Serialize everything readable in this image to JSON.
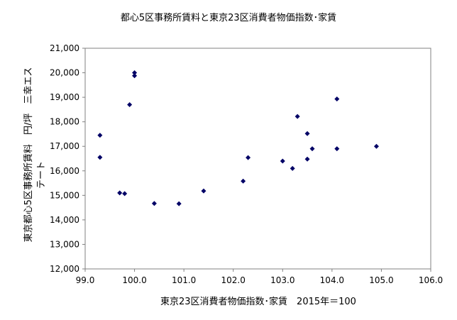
{
  "chart_data": {
    "type": "scatter",
    "title": "都心5区事務所賃料と東京23区消費者物価指数･家賃",
    "xlabel": "東京23区消費者物価指数･家賃　2015年＝100",
    "ylabel_line1": "東京都心5区事務所賃料　円/坪　三幸エステート",
    "ylabel": "東京都心5区事務所賃料　円/坪　三幸エス",
    "ylabel_line2": "テート",
    "xlim": [
      99.0,
      106.0
    ],
    "ylim": [
      12000,
      21000
    ],
    "x_ticks": [
      "99.0",
      "100.0",
      "101.0",
      "102.0",
      "103.0",
      "104.0",
      "105.0",
      "106.0"
    ],
    "y_ticks": [
      "12,000",
      "13,000",
      "14,000",
      "15,000",
      "16,000",
      "17,000",
      "18,000",
      "19,000",
      "20,000",
      "21,000"
    ],
    "grid": false,
    "marker_color": "#000066",
    "points": [
      {
        "x": 99.3,
        "y": 17450
      },
      {
        "x": 99.3,
        "y": 16550
      },
      {
        "x": 99.7,
        "y": 15100
      },
      {
        "x": 99.8,
        "y": 15070
      },
      {
        "x": 99.9,
        "y": 18700
      },
      {
        "x": 100.0,
        "y": 20000
      },
      {
        "x": 100.0,
        "y": 19880
      },
      {
        "x": 100.4,
        "y": 14670
      },
      {
        "x": 100.9,
        "y": 14660
      },
      {
        "x": 101.4,
        "y": 15180
      },
      {
        "x": 102.2,
        "y": 15580
      },
      {
        "x": 102.3,
        "y": 16540
      },
      {
        "x": 103.0,
        "y": 16400
      },
      {
        "x": 103.2,
        "y": 16100
      },
      {
        "x": 103.3,
        "y": 18220
      },
      {
        "x": 103.5,
        "y": 17520
      },
      {
        "x": 103.5,
        "y": 16480
      },
      {
        "x": 103.6,
        "y": 16900
      },
      {
        "x": 104.1,
        "y": 18930
      },
      {
        "x": 104.1,
        "y": 16900
      },
      {
        "x": 104.9,
        "y": 17000
      }
    ]
  }
}
